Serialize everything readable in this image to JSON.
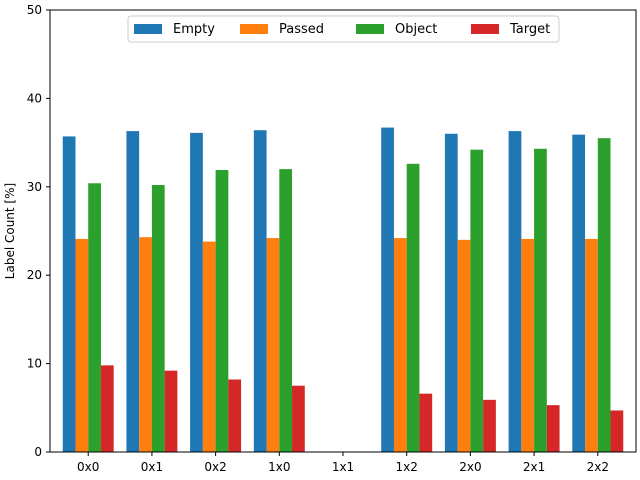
{
  "chart_data": {
    "type": "bar",
    "xlabel": "",
    "ylabel": "Label Count [%]",
    "ylim": [
      0,
      50
    ],
    "yticks": [
      0,
      10,
      20,
      30,
      40,
      50
    ],
    "grid": false,
    "legend_position": "top-center",
    "categories": [
      "0x0",
      "0x1",
      "0x2",
      "1x0",
      "1x1",
      "1x2",
      "2x0",
      "2x1",
      "2x2"
    ],
    "series": [
      {
        "name": "Empty",
        "color": "#1f77b4",
        "values": [
          35.7,
          36.3,
          36.1,
          36.4,
          0,
          36.7,
          36.0,
          36.3,
          35.9
        ]
      },
      {
        "name": "Passed",
        "color": "#ff7f0e",
        "values": [
          24.1,
          24.3,
          23.8,
          24.2,
          0,
          24.2,
          24.0,
          24.1,
          24.1
        ]
      },
      {
        "name": "Object",
        "color": "#2ca02c",
        "values": [
          30.4,
          30.2,
          31.9,
          32.0,
          0,
          32.6,
          34.2,
          34.3,
          35.5
        ]
      },
      {
        "name": "Target",
        "color": "#d62728",
        "values": [
          9.8,
          9.2,
          8.2,
          7.5,
          0,
          6.6,
          5.9,
          5.3,
          4.7
        ]
      }
    ]
  }
}
